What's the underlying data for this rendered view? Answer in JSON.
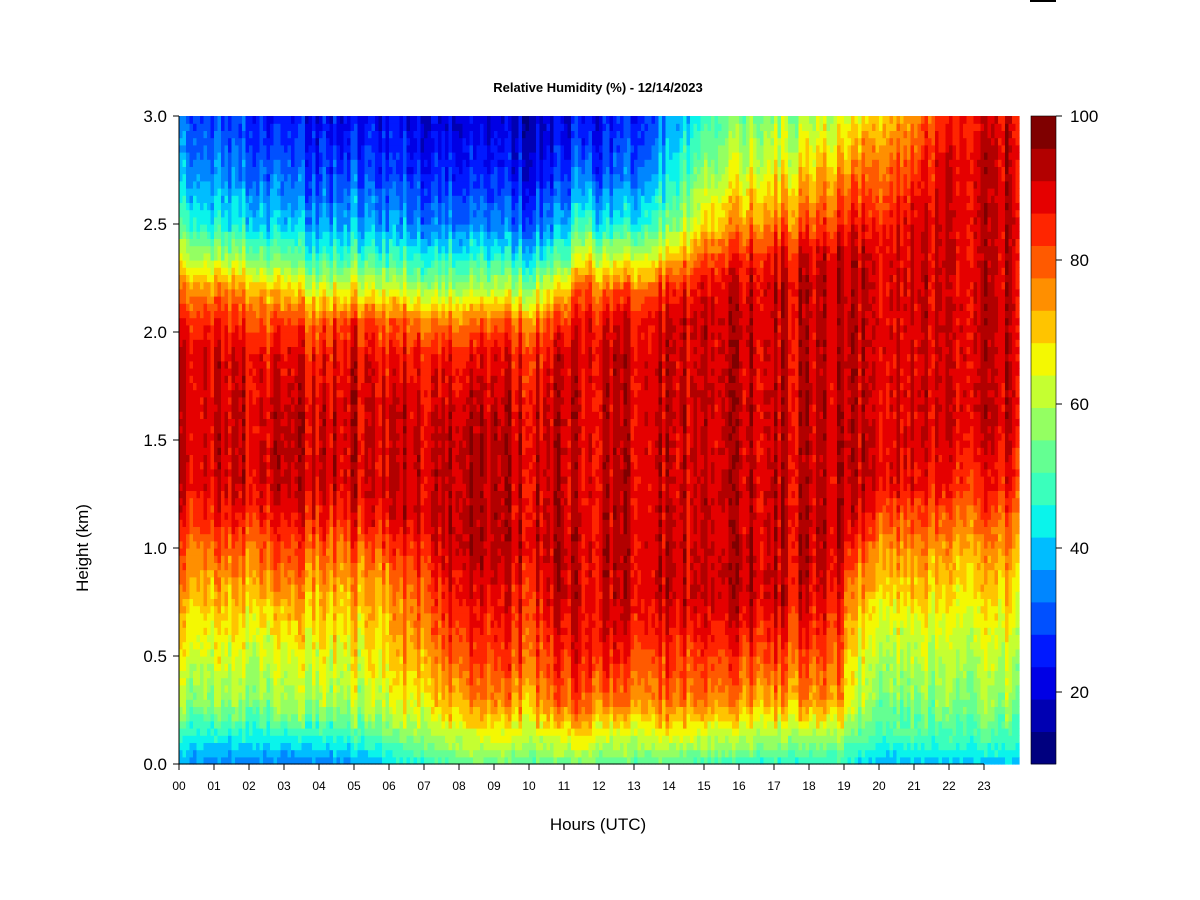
{
  "chart_data": {
    "type": "heatmap",
    "title": "Relative Humidity (%) - 12/14/2023",
    "xlabel": "Hours (UTC)",
    "ylabel": "Height (km)",
    "xlim": [
      0,
      24
    ],
    "ylim": [
      0,
      3
    ],
    "x_ticks": [
      "00",
      "01",
      "02",
      "03",
      "04",
      "05",
      "06",
      "07",
      "08",
      "09",
      "10",
      "11",
      "12",
      "13",
      "14",
      "15",
      "16",
      "17",
      "18",
      "19",
      "20",
      "21",
      "22",
      "23"
    ],
    "y_ticks": [
      "0.0",
      "0.5",
      "1.0",
      "1.5",
      "2.0",
      "2.5",
      "3.0"
    ],
    "colorbar": {
      "min": 10,
      "max": 100,
      "step": 5,
      "ticks": [
        "20",
        "40",
        "60",
        "80",
        "100"
      ],
      "colors": [
        "#00007F",
        "#0000B2",
        "#0000E5",
        "#0019FF",
        "#0050FF",
        "#0086FF",
        "#00BDFF",
        "#0AF4EB",
        "#3AFFBC",
        "#64FF92",
        "#94FF62",
        "#C5FF31",
        "#F4F802",
        "#FFC400",
        "#FF8F00",
        "#FF5A00",
        "#FF2500",
        "#E50000",
        "#B20000",
        "#7F0000"
      ]
    },
    "time_keys": [
      0,
      1,
      2,
      3,
      4,
      5,
      6,
      7,
      8,
      9,
      10,
      11,
      11.7,
      12,
      13,
      14,
      15,
      16,
      17,
      18,
      18.9,
      19.2,
      20,
      21,
      22,
      23,
      24
    ],
    "height_keys": [
      0,
      0.03,
      0.1,
      0.2,
      0.3,
      0.45,
      0.6,
      0.8,
      1.0,
      1.15,
      1.3,
      1.6,
      1.9,
      2.05,
      2.2,
      2.35,
      2.5,
      2.75,
      3.0
    ],
    "rh_grid": [
      [
        40,
        42,
        48,
        58,
        65,
        70,
        75,
        82,
        88,
        95,
        100,
        100,
        100,
        95,
        85,
        70,
        55,
        42,
        35
      ],
      [
        38,
        40,
        46,
        56,
        63,
        69,
        74,
        80,
        88,
        95,
        100,
        100,
        100,
        95,
        85,
        65,
        50,
        38,
        32
      ],
      [
        38,
        40,
        46,
        56,
        63,
        68,
        72,
        80,
        88,
        95,
        100,
        100,
        98,
        92,
        82,
        62,
        48,
        36,
        30
      ],
      [
        34,
        38,
        45,
        56,
        62,
        66,
        72,
        80,
        88,
        95,
        100,
        100,
        95,
        88,
        75,
        55,
        42,
        32,
        25
      ],
      [
        36,
        40,
        48,
        58,
        66,
        70,
        74,
        80,
        88,
        95,
        100,
        100,
        95,
        88,
        70,
        52,
        40,
        30,
        25
      ],
      [
        40,
        43,
        50,
        60,
        66,
        70,
        75,
        80,
        88,
        95,
        100,
        100,
        98,
        92,
        72,
        55,
        42,
        32,
        25
      ],
      [
        45,
        48,
        55,
        64,
        70,
        75,
        78,
        82,
        90,
        98,
        100,
        100,
        95,
        88,
        70,
        52,
        40,
        30,
        25
      ],
      [
        50,
        55,
        62,
        68,
        75,
        80,
        85,
        90,
        95,
        100,
        100,
        100,
        95,
        85,
        65,
        50,
        38,
        28,
        22
      ],
      [
        55,
        60,
        65,
        72,
        80,
        85,
        90,
        95,
        100,
        100,
        100,
        100,
        92,
        82,
        62,
        48,
        35,
        25,
        20
      ],
      [
        58,
        62,
        68,
        75,
        82,
        88,
        92,
        95,
        100,
        100,
        100,
        100,
        95,
        85,
        65,
        48,
        35,
        25,
        20
      ],
      [
        55,
        60,
        66,
        75,
        82,
        88,
        92,
        95,
        100,
        100,
        100,
        100,
        95,
        85,
        65,
        48,
        35,
        25,
        20
      ],
      [
        55,
        62,
        68,
        78,
        85,
        90,
        95,
        100,
        100,
        100,
        100,
        100,
        98,
        90,
        75,
        55,
        40,
        28,
        22
      ],
      [
        60,
        65,
        72,
        85,
        92,
        98,
        100,
        100,
        100,
        100,
        100,
        100,
        100,
        100,
        95,
        80,
        60,
        40,
        30
      ],
      [
        55,
        60,
        66,
        75,
        85,
        92,
        98,
        100,
        100,
        100,
        100,
        100,
        100,
        95,
        85,
        65,
        45,
        30,
        25
      ],
      [
        55,
        60,
        66,
        75,
        85,
        90,
        95,
        100,
        100,
        100,
        100,
        100,
        100,
        98,
        88,
        70,
        50,
        35,
        28
      ],
      [
        55,
        60,
        68,
        78,
        85,
        90,
        95,
        100,
        100,
        100,
        100,
        100,
        100,
        100,
        92,
        75,
        58,
        45,
        38
      ],
      [
        52,
        58,
        66,
        75,
        85,
        90,
        95,
        100,
        100,
        100,
        100,
        100,
        100,
        100,
        98,
        88,
        75,
        62,
        52
      ],
      [
        50,
        56,
        64,
        72,
        82,
        88,
        94,
        100,
        100,
        100,
        100,
        100,
        100,
        100,
        98,
        92,
        82,
        68,
        58
      ],
      [
        50,
        55,
        62,
        72,
        82,
        88,
        94,
        100,
        100,
        100,
        100,
        100,
        100,
        100,
        100,
        95,
        85,
        72,
        62
      ],
      [
        50,
        55,
        62,
        72,
        82,
        86,
        92,
        98,
        100,
        100,
        100,
        100,
        100,
        100,
        100,
        98,
        88,
        75,
        65
      ],
      [
        50,
        55,
        62,
        72,
        82,
        86,
        90,
        95,
        100,
        100,
        100,
        100,
        100,
        100,
        100,
        100,
        92,
        80,
        68
      ],
      [
        45,
        50,
        55,
        62,
        68,
        70,
        74,
        80,
        90,
        98,
        100,
        100,
        100,
        100,
        100,
        100,
        94,
        82,
        70
      ],
      [
        40,
        45,
        52,
        58,
        62,
        66,
        70,
        78,
        85,
        92,
        100,
        100,
        100,
        100,
        100,
        100,
        95,
        88,
        78
      ],
      [
        42,
        46,
        52,
        58,
        62,
        66,
        70,
        78,
        85,
        90,
        98,
        100,
        100,
        100,
        100,
        100,
        100,
        92,
        85
      ],
      [
        42,
        46,
        52,
        58,
        62,
        66,
        70,
        76,
        82,
        88,
        95,
        100,
        100,
        100,
        100,
        100,
        100,
        100,
        95
      ],
      [
        42,
        46,
        52,
        58,
        62,
        66,
        70,
        76,
        82,
        88,
        94,
        100,
        100,
        100,
        100,
        100,
        100,
        100,
        98
      ],
      [
        42,
        46,
        52,
        58,
        62,
        66,
        70,
        76,
        82,
        88,
        94,
        100,
        100,
        100,
        100,
        100,
        100,
        100,
        98
      ]
    ]
  }
}
